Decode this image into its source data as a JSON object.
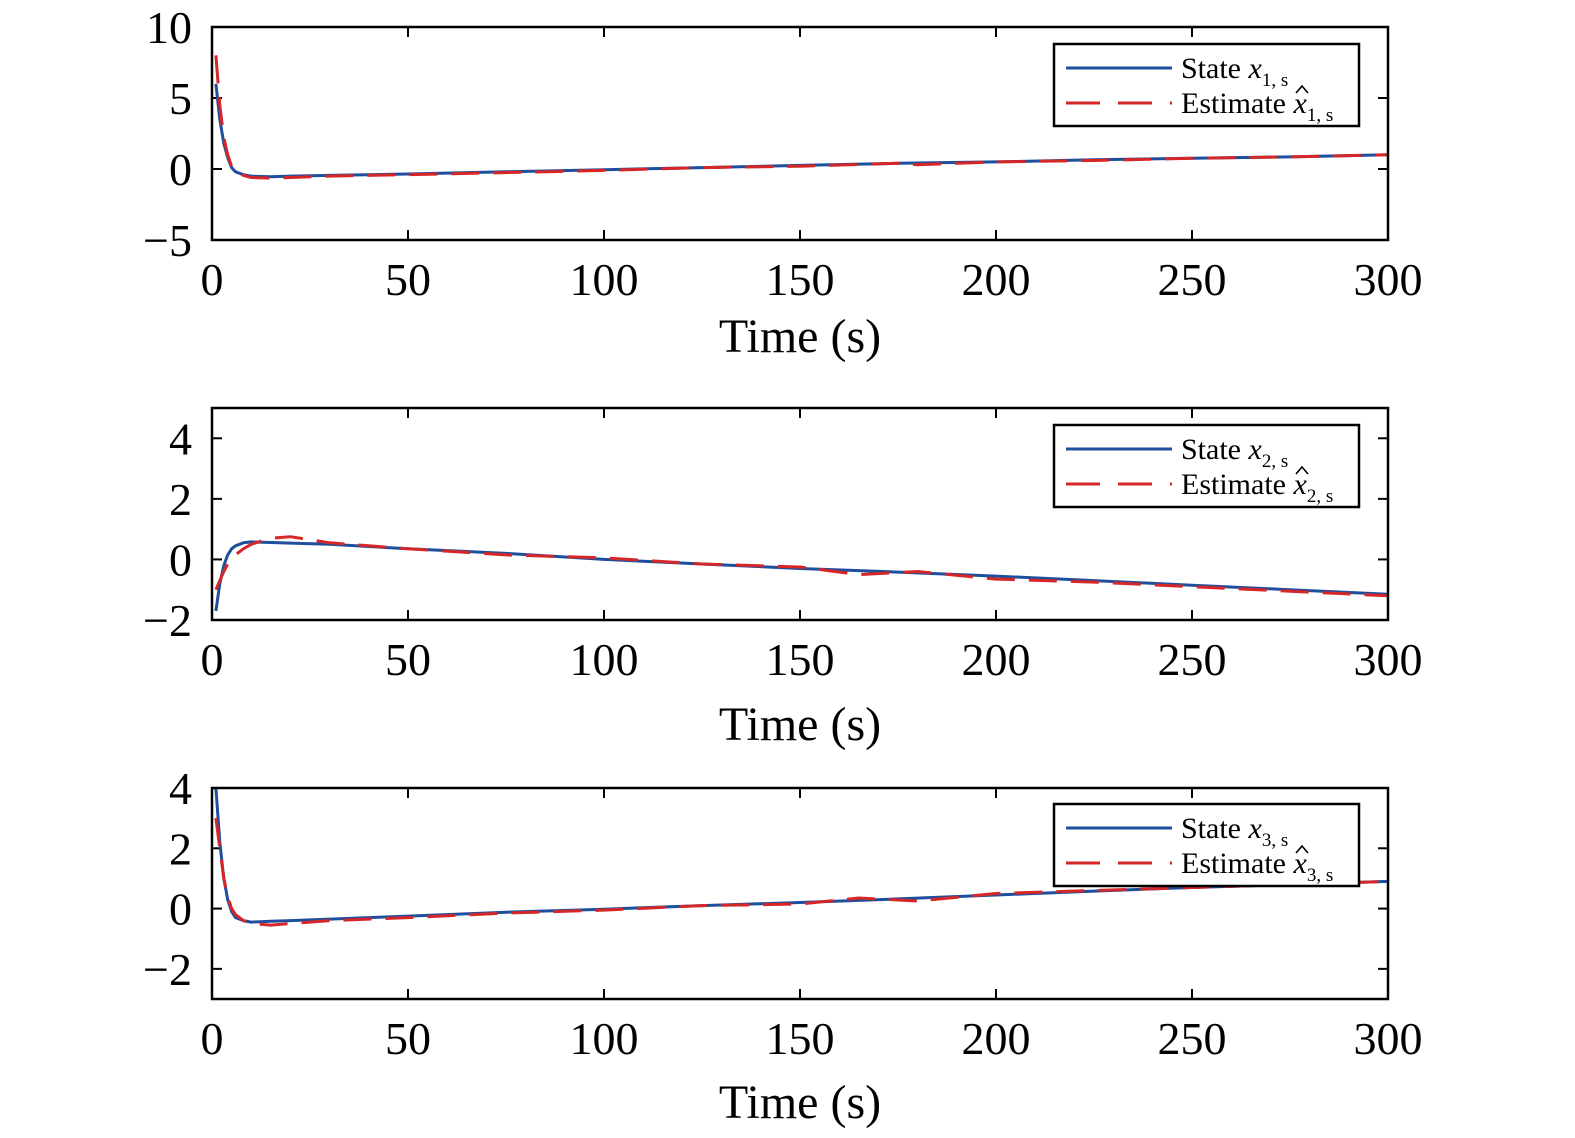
{
  "figure": {
    "colors": {
      "state": "#1f4e9c",
      "estimate": "#d62728",
      "axes": "#000000"
    }
  },
  "chart_data": [
    {
      "type": "line",
      "xlabel": "Time (s)",
      "ylabel": "",
      "xlim": [
        0,
        300
      ],
      "ylim": [
        -5,
        10
      ],
      "xticks": [
        "0",
        "50",
        "100",
        "150",
        "200",
        "250",
        "300"
      ],
      "yticks": [
        "10",
        "5",
        "0",
        "−5"
      ],
      "ytick_values": [
        10,
        5,
        0,
        -5
      ],
      "legend_position": "top-right",
      "series": [
        {
          "name": "State x1,s",
          "legend": {
            "prefix": "State ",
            "var": "x",
            "sub": "1, s",
            "hat": false
          },
          "style": "solid",
          "x": [
            1,
            2,
            3,
            4,
            5,
            6,
            8,
            10,
            15,
            20,
            30,
            50,
            75,
            100,
            125,
            150,
            175,
            200,
            225,
            250,
            275,
            300
          ],
          "y": [
            6,
            3.5,
            1.8,
            0.8,
            0.1,
            -0.2,
            -0.4,
            -0.5,
            -0.55,
            -0.5,
            -0.45,
            -0.35,
            -0.2,
            -0.05,
            0.1,
            0.25,
            0.4,
            0.5,
            0.65,
            0.75,
            0.85,
            1.0
          ]
        },
        {
          "name": "Estimate x̂1,s",
          "legend": {
            "prefix": "Estimate ",
            "var": "x",
            "sub": "1, s",
            "hat": true
          },
          "style": "dashed",
          "x": [
            1,
            2,
            3,
            4,
            5,
            6,
            8,
            10,
            15,
            20,
            30,
            50,
            75,
            100,
            125,
            150,
            175,
            180,
            200,
            225,
            250,
            275,
            300
          ],
          "y": [
            8,
            4.5,
            2.2,
            1.0,
            0.2,
            -0.2,
            -0.45,
            -0.6,
            -0.65,
            -0.6,
            -0.5,
            -0.4,
            -0.25,
            -0.1,
            0.1,
            0.2,
            0.4,
            0.3,
            0.5,
            0.6,
            0.75,
            0.85,
            1.0
          ]
        }
      ]
    },
    {
      "type": "line",
      "xlabel": "Time (s)",
      "ylabel": "",
      "xlim": [
        0,
        300
      ],
      "ylim": [
        -2,
        5
      ],
      "xticks": [
        "0",
        "50",
        "100",
        "150",
        "200",
        "250",
        "300"
      ],
      "yticks": [
        "4",
        "2",
        "0",
        "−2"
      ],
      "ytick_values": [
        4,
        2,
        0,
        -2
      ],
      "legend_position": "top-right",
      "series": [
        {
          "name": "State x2,s",
          "legend": {
            "prefix": "State ",
            "var": "x",
            "sub": "2, s",
            "hat": false
          },
          "style": "solid",
          "x": [
            1,
            2,
            3,
            4,
            5,
            6,
            8,
            10,
            15,
            20,
            30,
            50,
            75,
            100,
            125,
            150,
            175,
            200,
            225,
            250,
            275,
            300
          ],
          "y": [
            -1.7,
            -0.8,
            -0.2,
            0.15,
            0.35,
            0.45,
            0.55,
            0.58,
            0.56,
            0.54,
            0.5,
            0.35,
            0.2,
            0.0,
            -0.15,
            -0.3,
            -0.42,
            -0.55,
            -0.7,
            -0.85,
            -1.0,
            -1.15
          ]
        },
        {
          "name": "Estimate x̂2,s",
          "legend": {
            "prefix": "Estimate ",
            "var": "x",
            "sub": "2, s",
            "hat": true
          },
          "style": "dashed",
          "x": [
            1,
            2,
            3,
            4,
            6,
            8,
            10,
            15,
            20,
            30,
            50,
            75,
            100,
            125,
            150,
            165,
            180,
            200,
            225,
            250,
            275,
            300
          ],
          "y": [
            -1.0,
            -0.7,
            -0.4,
            -0.15,
            0.15,
            0.35,
            0.5,
            0.7,
            0.75,
            0.55,
            0.35,
            0.15,
            0.05,
            -0.15,
            -0.25,
            -0.5,
            -0.4,
            -0.65,
            -0.75,
            -0.9,
            -1.05,
            -1.2
          ]
        }
      ]
    },
    {
      "type": "line",
      "xlabel": "Time (s)",
      "ylabel": "",
      "xlim": [
        0,
        300
      ],
      "ylim": [
        -3,
        4
      ],
      "xticks": [
        "0",
        "50",
        "100",
        "150",
        "200",
        "250",
        "300"
      ],
      "yticks": [
        "4",
        "2",
        "0",
        "−2"
      ],
      "ytick_values": [
        4,
        2,
        0,
        -2
      ],
      "legend_position": "top-right",
      "series": [
        {
          "name": "State x3,s",
          "legend": {
            "prefix": "State ",
            "var": "x",
            "sub": "3, s",
            "hat": false
          },
          "style": "solid",
          "x": [
            1,
            2,
            3,
            4,
            5,
            6,
            8,
            10,
            15,
            20,
            30,
            50,
            75,
            100,
            125,
            150,
            175,
            200,
            225,
            250,
            275,
            300
          ],
          "y": [
            4,
            2.2,
            1.0,
            0.3,
            -0.1,
            -0.3,
            -0.4,
            -0.45,
            -0.42,
            -0.4,
            -0.35,
            -0.25,
            -0.12,
            -0.02,
            0.1,
            0.2,
            0.32,
            0.45,
            0.58,
            0.7,
            0.8,
            0.9
          ]
        },
        {
          "name": "Estimate x̂3,s",
          "legend": {
            "prefix": "Estimate ",
            "var": "x",
            "sub": "3, s",
            "hat": true
          },
          "style": "dashed",
          "x": [
            1,
            2,
            3,
            4,
            5,
            6,
            8,
            10,
            15,
            20,
            30,
            50,
            75,
            100,
            125,
            150,
            165,
            180,
            200,
            225,
            250,
            275,
            300
          ],
          "y": [
            3,
            2.0,
            1.0,
            0.4,
            0.0,
            -0.2,
            -0.4,
            -0.5,
            -0.55,
            -0.5,
            -0.4,
            -0.3,
            -0.15,
            -0.05,
            0.1,
            0.15,
            0.35,
            0.25,
            0.5,
            0.6,
            0.7,
            0.8,
            0.9
          ]
        }
      ]
    }
  ]
}
